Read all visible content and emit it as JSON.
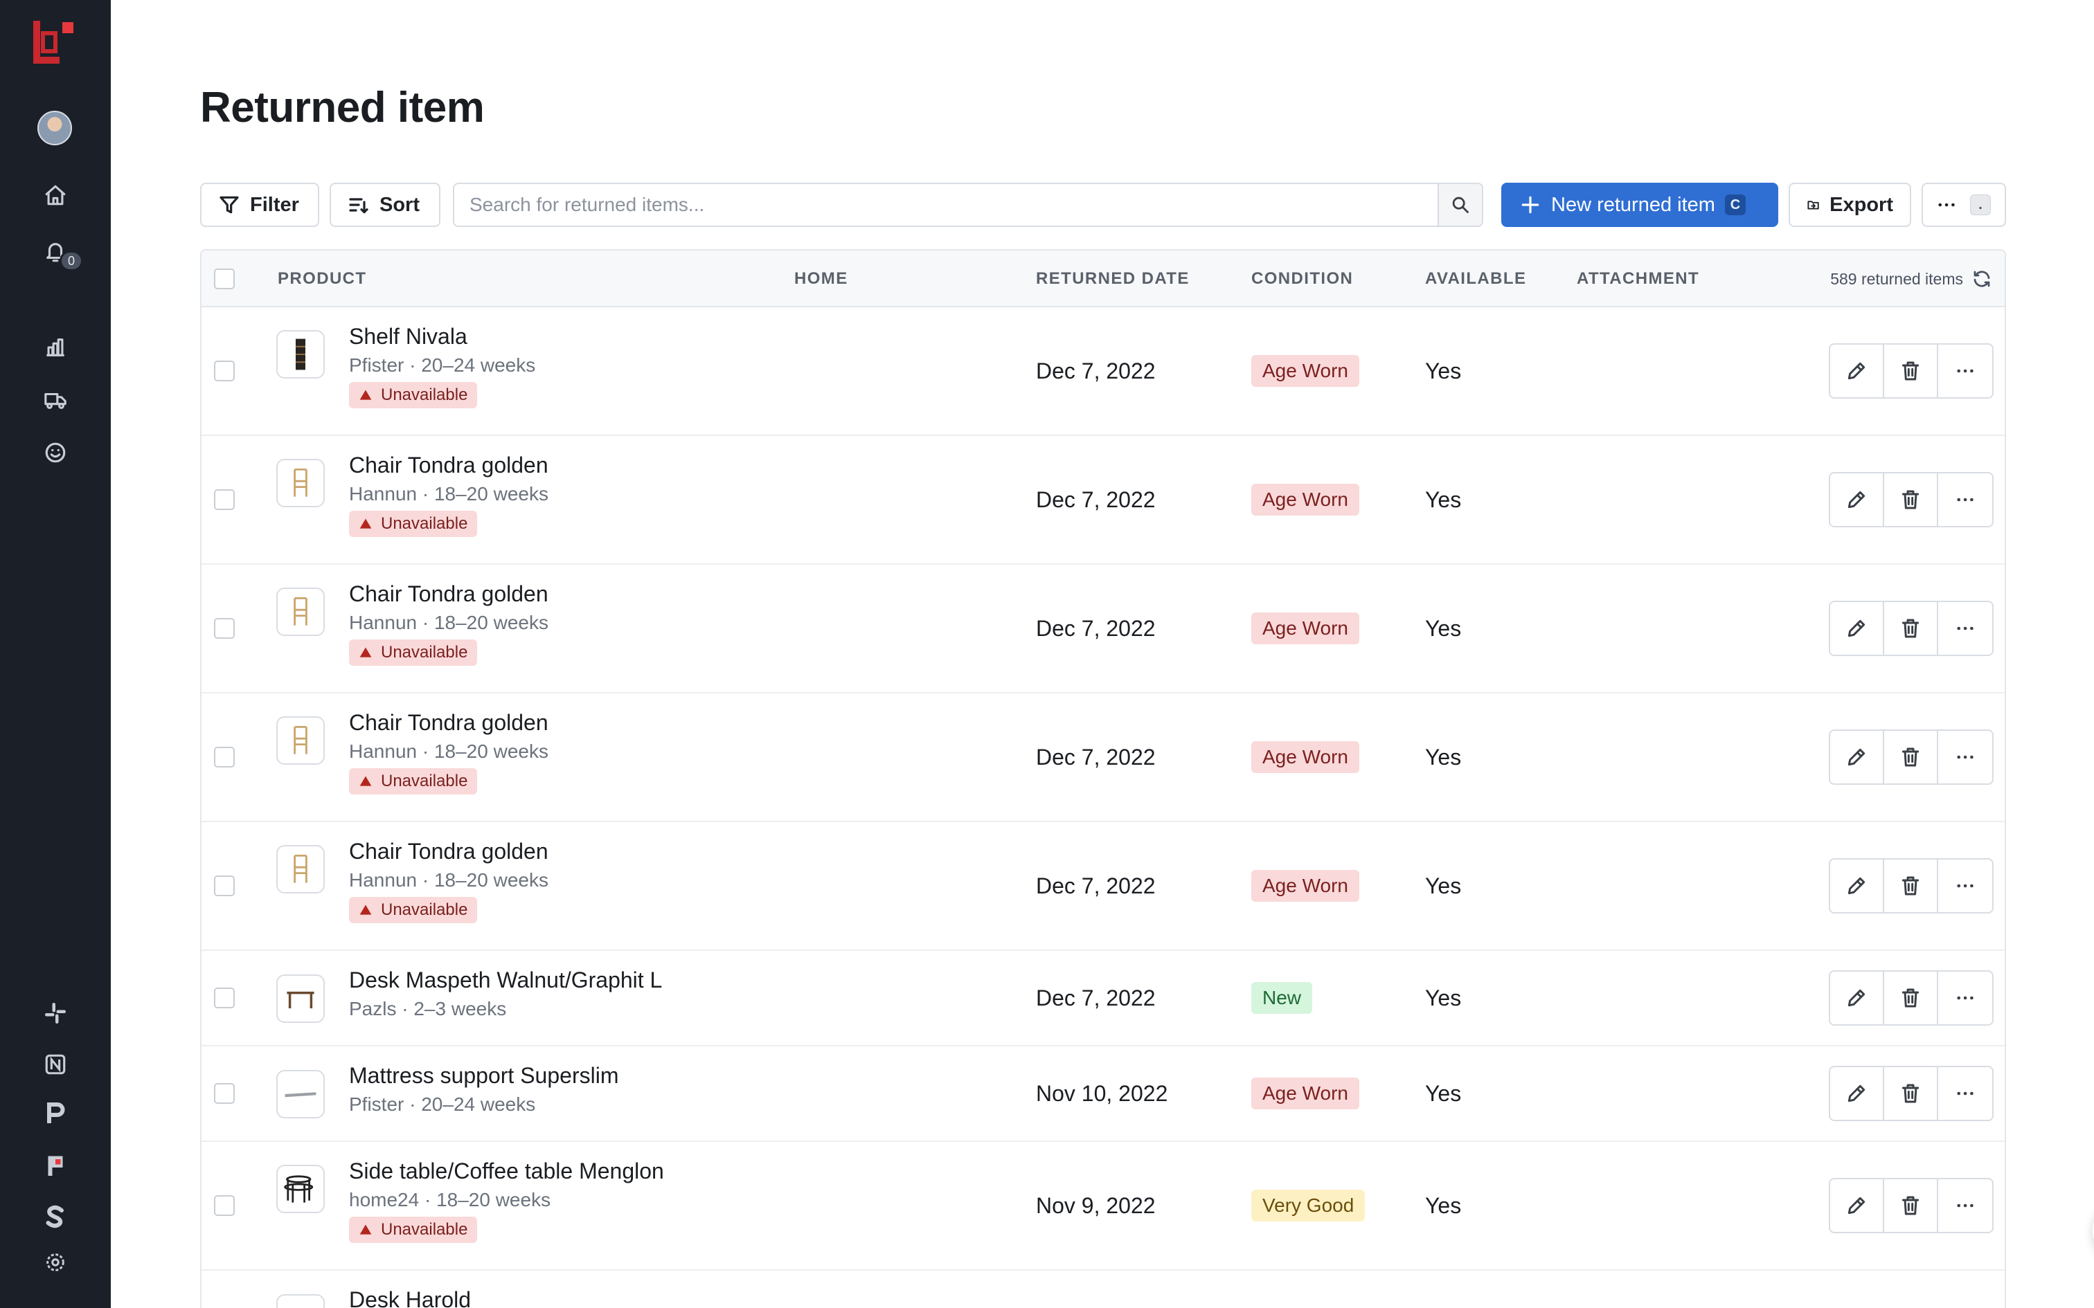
{
  "page": {
    "title": "Returned item"
  },
  "sidebar": {
    "notification_count": "0",
    "icons": [
      "home-icon",
      "bell-icon",
      "chart-icon",
      "truck-icon",
      "smile-icon"
    ],
    "apps": [
      "slack-icon",
      "notion-icon",
      "p-app-icon",
      "flag-app-icon",
      "s-app-icon",
      "settings-icon"
    ]
  },
  "toolbar": {
    "filter_label": "Filter",
    "sort_label": "Sort",
    "search_placeholder": "Search for returned items...",
    "new_label": "New returned item",
    "new_shortcut": "C",
    "export_label": "Export",
    "more_shortcut": "."
  },
  "table": {
    "columns": {
      "product": "PRODUCT",
      "home": "HOME",
      "returned_date": "RETURNED DATE",
      "condition": "CONDITION",
      "available": "AVAILABLE",
      "attachment": "ATTACHMENT"
    },
    "count_label": "589 returned items",
    "rows": [
      {
        "name": "Shelf Nivala",
        "meta": "Pfister · 20–24 weeks",
        "unavailable": "Unavailable",
        "date": "Dec 7, 2022",
        "condition": "Age Worn",
        "available": "Yes"
      },
      {
        "name": "Chair Tondra golden",
        "meta": "Hannun · 18–20 weeks",
        "unavailable": "Unavailable",
        "date": "Dec 7, 2022",
        "condition": "Age Worn",
        "available": "Yes"
      },
      {
        "name": "Chair Tondra golden",
        "meta": "Hannun · 18–20 weeks",
        "unavailable": "Unavailable",
        "date": "Dec 7, 2022",
        "condition": "Age Worn",
        "available": "Yes"
      },
      {
        "name": "Chair Tondra golden",
        "meta": "Hannun · 18–20 weeks",
        "unavailable": "Unavailable",
        "date": "Dec 7, 2022",
        "condition": "Age Worn",
        "available": "Yes"
      },
      {
        "name": "Chair Tondra golden",
        "meta": "Hannun · 18–20 weeks",
        "unavailable": "Unavailable",
        "date": "Dec 7, 2022",
        "condition": "Age Worn",
        "available": "Yes"
      },
      {
        "name": "Desk Maspeth Walnut/Graphit L",
        "meta": "Pazls · 2–3 weeks",
        "date": "Dec 7, 2022",
        "condition": "New",
        "available": "Yes"
      },
      {
        "name": "Mattress support Superslim",
        "meta": "Pfister · 20–24 weeks",
        "date": "Nov 10, 2022",
        "condition": "Age Worn",
        "available": "Yes"
      },
      {
        "name": "Side table/Coffee table Menglon",
        "meta": "home24 · 18–20 weeks",
        "unavailable": "Unavailable",
        "date": "Nov 9, 2022",
        "condition": "Very Good",
        "available": "Yes"
      },
      {
        "name": "Desk Harold"
      }
    ]
  },
  "colors": {
    "sidebar": "#1b1f27",
    "primary": "#2f6fd4",
    "danger_bg": "#f9d9d9",
    "success_bg": "#d5f5dd",
    "warning_bg": "#fdf1c4"
  }
}
